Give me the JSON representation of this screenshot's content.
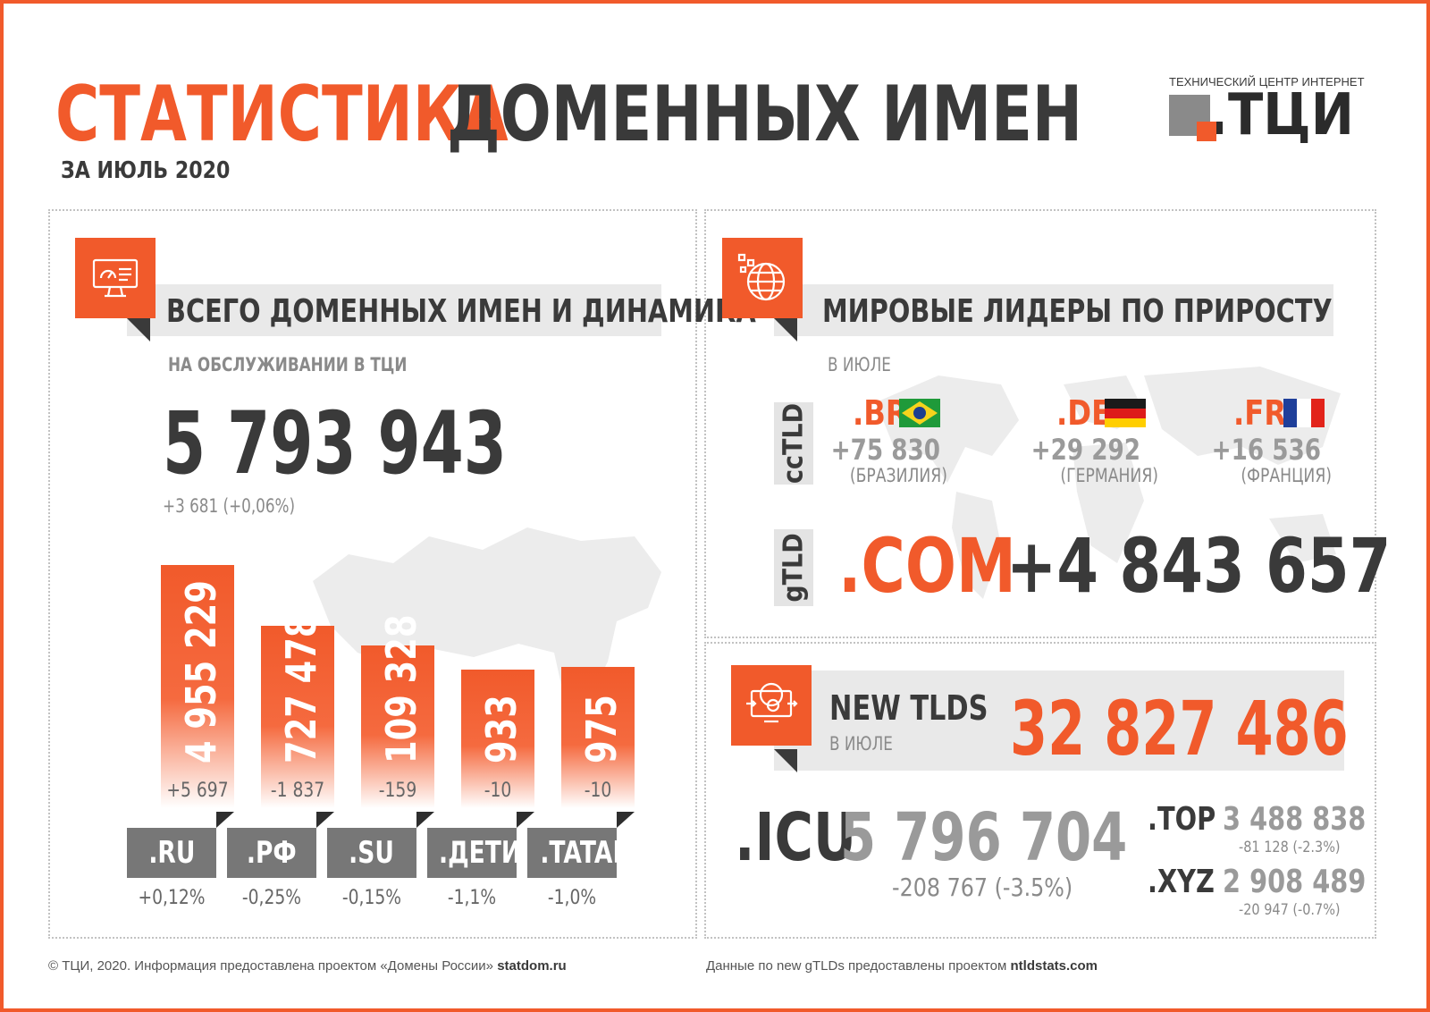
{
  "header": {
    "title_accent": "СТАТИСТИКА",
    "title_main": "ДОМЕННЫХ ИМЕН",
    "subtitle": "ЗА ИЮЛЬ 2020",
    "logo_tagline": "ТЕХНИЧЕСКИЙ ЦЕНТР ИНТЕРНЕТ",
    "logo_text": "ТЦИ"
  },
  "colors": {
    "accent": "#f15a2b",
    "dark": "#3a3a3a",
    "grey": "#8a8a8a",
    "tab": "#777777"
  },
  "left_panel": {
    "icon": "dashboard-monitor-icon",
    "heading": "ВСЕГО ДОМЕННЫХ ИМЕН И ДИНАМИКА",
    "caption": "НА ОБСЛУЖИВАНИИ В ТЦИ",
    "total": "5 793 943",
    "total_change": "+3 681 (+0,06%)"
  },
  "chart_data": {
    "type": "bar",
    "categories": [
      ".RU",
      ".РФ",
      ".SU",
      ".ДЕТИ",
      ".TATAR"
    ],
    "value_labels": [
      "4 955 229",
      "727 478",
      "109 328",
      "933",
      "975"
    ],
    "values": [
      4955229,
      727478,
      109328,
      933,
      975
    ],
    "deltas": [
      "+5 697",
      "-1 837",
      "-159",
      "-10",
      "-10"
    ],
    "percent_changes": [
      "+0,12%",
      "-0,25%",
      "-0,15%",
      "-1,1%",
      "-1,0%"
    ],
    "bar_level": [
      1.0,
      0.75,
      0.67,
      0.57,
      0.58
    ]
  },
  "leaders_panel": {
    "icon": "globe-icon",
    "heading": "МИРОВЫЕ ЛИДЕРЫ ПО ПРИРОСТУ",
    "caption": "В ИЮЛЕ",
    "cctld_label": "ccTLD",
    "gtld_label": "gTLD",
    "leaders": [
      {
        "code": ".BR",
        "value": "+75 830",
        "country": "(БРАЗИЛИЯ)",
        "flag": "brazil-flag-icon"
      },
      {
        "code": ".DE",
        "value": "+29 292",
        "country": "(ГЕРМАНИЯ)",
        "flag": "germany-flag-icon"
      },
      {
        "code": ".FR",
        "value": "+16 536",
        "country": "(ФРАНЦИЯ)",
        "flag": "france-flag-icon"
      }
    ],
    "gtld_code": ".COM",
    "gtld_value": "+4 843 657"
  },
  "newtlds_panel": {
    "icon": "globe-settings-icon",
    "heading": "NEW TLDS",
    "caption": "В ИЮЛЕ",
    "total": "32 827 486",
    "main": {
      "code": ".ICU",
      "value": "5 796 704",
      "change": "-208 767 (-3.5%)"
    },
    "others": [
      {
        "code": ".TOP",
        "value": "3 488 838",
        "change": "-81 128 (-2.3%)"
      },
      {
        "code": ".XYZ",
        "value": "2 908 489",
        "change": "-20 947 (-0.7%)"
      }
    ]
  },
  "footer": {
    "left_text": "© ТЦИ, 2020.  Информация предоставлена проектом «Домены России»",
    "left_link": "statdom.ru",
    "right_text": "Данные по new gTLDs предоставлены проектом",
    "right_link": "ntldstats.com"
  }
}
